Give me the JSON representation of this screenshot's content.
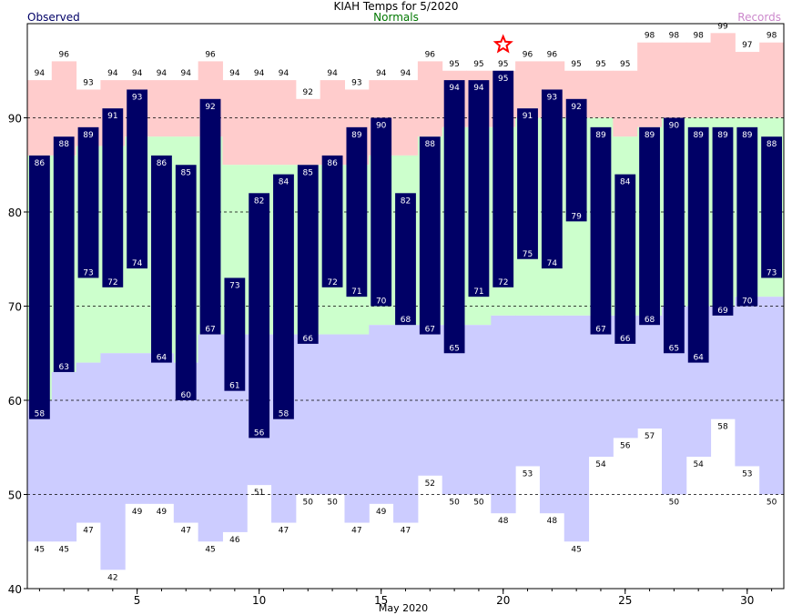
{
  "chart_data": {
    "type": "bar",
    "title": "KIAH Temps for 5/2020",
    "legend": {
      "observed": "Observed",
      "normals": "Normals",
      "records": "Records"
    },
    "xlabel": "May 2020",
    "ylim": [
      40,
      100
    ],
    "yticks": [
      40,
      50,
      60,
      70,
      80,
      90
    ],
    "xticks": [
      5,
      10,
      15,
      20,
      25,
      30
    ],
    "grid": "dashed horizontal at 50, 60, 70, 80, 90",
    "days": [
      1,
      2,
      3,
      4,
      5,
      6,
      7,
      8,
      9,
      10,
      11,
      12,
      13,
      14,
      15,
      16,
      17,
      18,
      19,
      20,
      21,
      22,
      23,
      24,
      25,
      26,
      27,
      28,
      29,
      30,
      31
    ],
    "series": [
      {
        "name": "Observed",
        "key": "obs_high",
        "values": [
          86,
          88,
          89,
          91,
          93,
          86,
          85,
          92,
          73,
          82,
          84,
          85,
          86,
          89,
          90,
          82,
          88,
          94,
          94,
          95,
          91,
          93,
          92,
          89,
          84,
          89,
          90,
          89,
          89,
          89,
          88
        ]
      },
      {
        "name": "Observed",
        "key": "obs_low",
        "values": [
          58,
          63,
          73,
          72,
          74,
          64,
          60,
          67,
          61,
          56,
          58,
          66,
          72,
          71,
          70,
          68,
          67,
          65,
          71,
          72,
          75,
          74,
          79,
          67,
          66,
          68,
          65,
          64,
          69,
          70,
          73
        ]
      },
      {
        "name": "Normals",
        "key": "normal_high",
        "values": [
          86,
          86,
          87,
          87,
          88,
          88,
          88,
          88,
          85,
          85,
          85,
          85,
          85,
          85,
          86,
          86,
          88,
          89,
          89,
          89,
          90,
          90,
          90,
          90,
          88,
          89,
          90,
          90,
          90,
          90,
          90
        ]
      },
      {
        "name": "Normals",
        "key": "normal_low",
        "values": [
          60,
          63,
          64,
          65,
          65,
          65,
          64,
          67,
          67,
          67,
          67,
          67,
          67,
          67,
          68,
          68,
          68,
          68,
          68,
          69,
          69,
          69,
          69,
          69,
          69,
          69,
          70,
          70,
          70,
          71,
          71
        ]
      },
      {
        "name": "Records",
        "key": "record_high",
        "values": [
          94,
          96,
          93,
          94,
          94,
          94,
          94,
          96,
          94,
          94,
          94,
          92,
          94,
          93,
          94,
          94,
          96,
          95,
          95,
          95,
          96,
          96,
          95,
          95,
          95,
          98,
          98,
          98,
          99,
          97,
          98
        ]
      },
      {
        "name": "Records",
        "key": "record_low",
        "values": [
          45,
          45,
          47,
          42,
          49,
          49,
          47,
          45,
          46,
          51,
          47,
          50,
          50,
          47,
          49,
          47,
          52,
          50,
          50,
          48,
          53,
          48,
          45,
          54,
          56,
          57,
          50,
          54,
          58,
          53,
          50
        ]
      }
    ],
    "marked_day": 20,
    "colors": {
      "observed": "#000066",
      "normal_fill": "#ccffcc",
      "record_high_fill": "#ffcccc",
      "record_low_fill": "#ccccff",
      "star": "#ff0000",
      "title_observed": "#000066",
      "title_normals": "#007700",
      "title_records": "#cc88cc"
    }
  }
}
